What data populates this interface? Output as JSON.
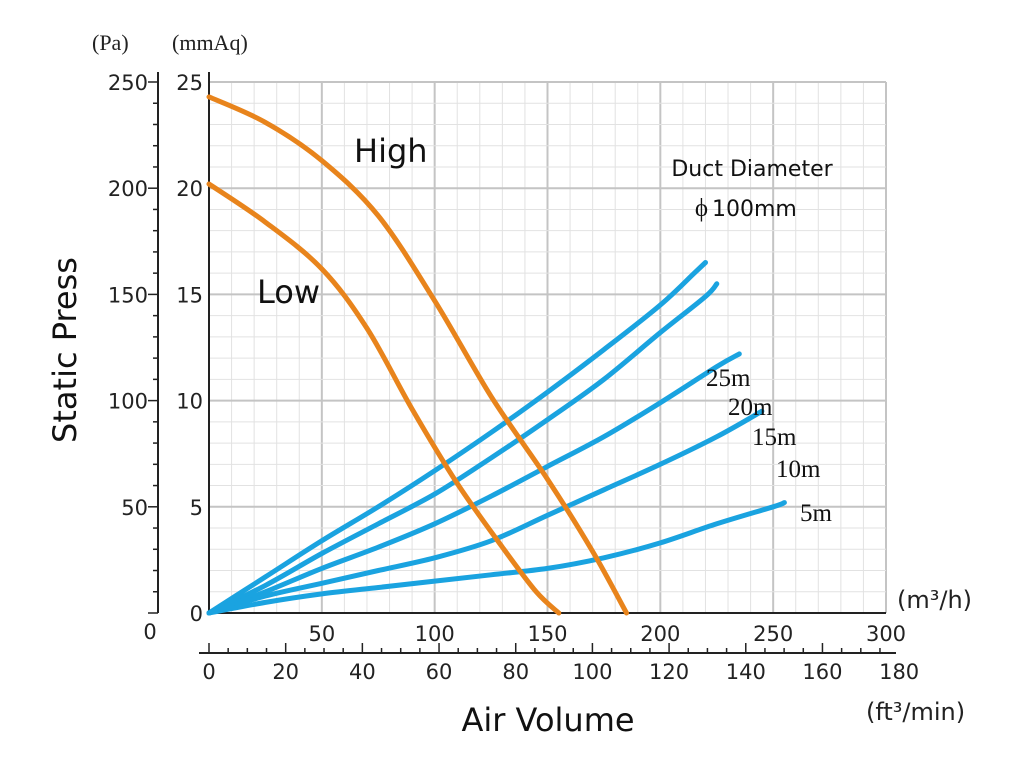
{
  "chart_data": {
    "type": "line",
    "title": "",
    "xlabel": "Air Volume",
    "ylabel": "Static Press",
    "x_unit_primary": "(m³/h)",
    "x_unit_secondary": "(ft³/min)",
    "y_unit_primary": "(Pa)",
    "y_unit_secondary": "(mmAq)",
    "xlim": [
      0,
      300
    ],
    "ylim": [
      0,
      250
    ],
    "x_ticks_primary": [
      "50",
      "100",
      "150",
      "200",
      "250",
      "300"
    ],
    "x_ticks_secondary": [
      "0",
      "20",
      "40",
      "60",
      "80",
      "100",
      "120",
      "140",
      "160",
      "180"
    ],
    "y_ticks_pa": [
      "250",
      "200",
      "150",
      "100",
      "50",
      "0"
    ],
    "y_ticks_mmaq": [
      "25",
      "20",
      "15",
      "10",
      "5",
      "0"
    ],
    "origin_label": "0",
    "annotation": {
      "line1": "Duct Diameter",
      "phi": "ϕ",
      "line2": "100mm"
    },
    "fan_series": [
      {
        "name": "High",
        "color": "#e8841c",
        "points": [
          [
            0,
            243
          ],
          [
            25,
            231
          ],
          [
            50,
            213
          ],
          [
            75,
            187
          ],
          [
            100,
            147
          ],
          [
            125,
            102
          ],
          [
            150,
            63
          ],
          [
            170,
            29
          ],
          [
            185,
            0
          ]
        ]
      },
      {
        "name": "Low",
        "color": "#e8841c",
        "points": [
          [
            0,
            202
          ],
          [
            25,
            184
          ],
          [
            50,
            162
          ],
          [
            70,
            134
          ],
          [
            90,
            96
          ],
          [
            110,
            61
          ],
          [
            130,
            31
          ],
          [
            145,
            10
          ],
          [
            155,
            0
          ]
        ]
      }
    ],
    "duct_series": [
      {
        "name": "25m",
        "color": "#1aa3e0",
        "points": [
          [
            0,
            0
          ],
          [
            25,
            17
          ],
          [
            50,
            34
          ],
          [
            75,
            50
          ],
          [
            100,
            67
          ],
          [
            125,
            85
          ],
          [
            150,
            104
          ],
          [
            175,
            124
          ],
          [
            200,
            145
          ],
          [
            215,
            160
          ],
          [
            220,
            165
          ]
        ]
      },
      {
        "name": "20m",
        "color": "#1aa3e0",
        "points": [
          [
            0,
            0
          ],
          [
            25,
            13
          ],
          [
            50,
            28
          ],
          [
            75,
            42
          ],
          [
            100,
            56
          ],
          [
            125,
            73
          ],
          [
            150,
            91
          ],
          [
            175,
            110
          ],
          [
            200,
            132
          ],
          [
            220,
            149
          ],
          [
            225,
            155
          ]
        ]
      },
      {
        "name": "15m",
        "color": "#1aa3e0",
        "points": [
          [
            0,
            0
          ],
          [
            25,
            10
          ],
          [
            50,
            21
          ],
          [
            75,
            31
          ],
          [
            100,
            42
          ],
          [
            125,
            55
          ],
          [
            150,
            69
          ],
          [
            175,
            83
          ],
          [
            200,
            99
          ],
          [
            225,
            116
          ],
          [
            235,
            122
          ]
        ]
      },
      {
        "name": "10m",
        "color": "#1aa3e0",
        "points": [
          [
            0,
            0
          ],
          [
            25,
            8
          ],
          [
            50,
            14
          ],
          [
            75,
            20
          ],
          [
            100,
            26
          ],
          [
            125,
            34
          ],
          [
            150,
            46
          ],
          [
            175,
            58
          ],
          [
            200,
            70
          ],
          [
            225,
            83
          ],
          [
            245,
            95
          ]
        ]
      },
      {
        "name": "5m",
        "color": "#1aa3e0",
        "points": [
          [
            0,
            0
          ],
          [
            25,
            5
          ],
          [
            50,
            9
          ],
          [
            75,
            12
          ],
          [
            100,
            15
          ],
          [
            125,
            18
          ],
          [
            150,
            21
          ],
          [
            175,
            26
          ],
          [
            200,
            33
          ],
          [
            225,
            42
          ],
          [
            250,
            50
          ],
          [
            255,
            52
          ]
        ]
      }
    ]
  }
}
